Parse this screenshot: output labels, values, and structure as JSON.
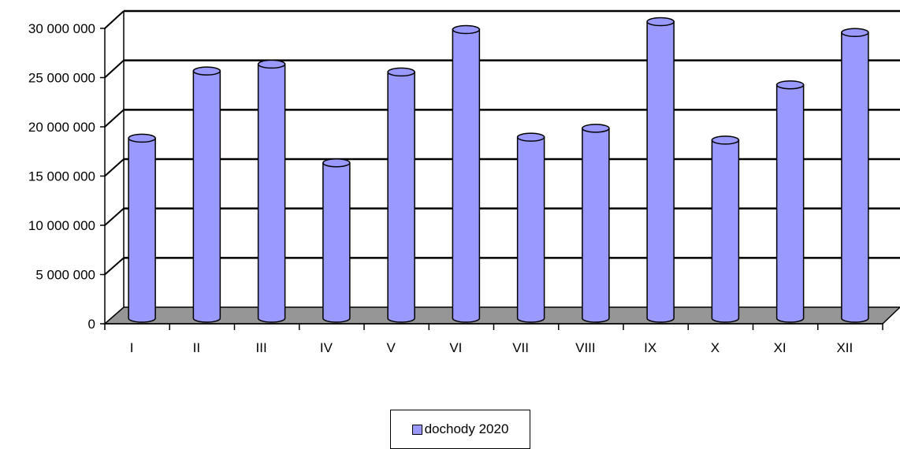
{
  "chart_data": {
    "type": "bar",
    "style": "3d-cylinder",
    "categories": [
      "I",
      "II",
      "III",
      "IV",
      "V",
      "VI",
      "VII",
      "VIII",
      "IX",
      "X",
      "XI",
      "XII"
    ],
    "series": [
      {
        "name": "dochody 2020",
        "color": "#9999ff",
        "values": [
          18000000,
          24800000,
          25500000,
          15500000,
          24700000,
          29000000,
          18100000,
          19000000,
          29800000,
          17800000,
          23400000,
          28700000
        ]
      }
    ],
    "yticks": [
      0,
      5000000,
      10000000,
      15000000,
      20000000,
      25000000,
      30000000
    ],
    "ytick_labels": [
      "0",
      "5 000 000",
      "10 000 000",
      "15 000 000",
      "20 000 000",
      "25 000 000",
      "30 000 000"
    ],
    "ylim": [
      0,
      30000000
    ],
    "grid": true,
    "legend_position": "bottom-center",
    "floor_color": "#969696"
  }
}
